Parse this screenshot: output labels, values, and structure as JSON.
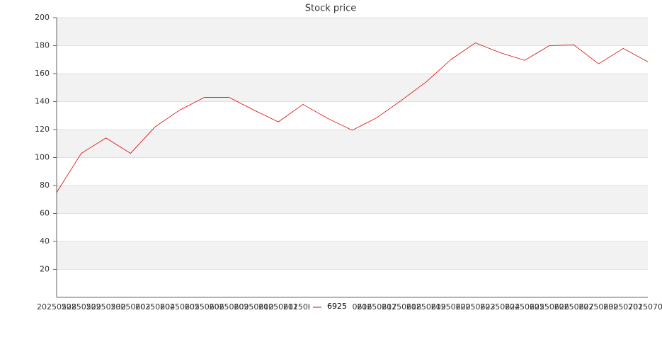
{
  "chart_data": {
    "type": "line",
    "title": "Stock price",
    "categories": [
      "20250528",
      "20250529",
      "20250530",
      "20250603",
      "20250604",
      "20250605",
      "20250606",
      "20250609",
      "20250610",
      "20250611",
      "20250612",
      "20250613",
      "20250616",
      "20250617",
      "20250618",
      "20250619",
      "20250620",
      "20250623",
      "20250624",
      "20250625",
      "20250626",
      "20250627",
      "20250630",
      "20250701",
      "20250702"
    ],
    "series": [
      {
        "name": "6925",
        "color": "#e00000",
        "values": [
          75,
          103,
          114,
          103,
          122,
          134,
          143,
          143,
          134,
          125.5,
          138,
          128,
          119.5,
          128.5,
          141,
          154,
          170,
          182,
          175,
          169.5,
          180,
          180.5,
          167,
          178,
          168.5
        ]
      }
    ],
    "ylim": [
      0,
      200
    ],
    "yticks": [
      20,
      40,
      60,
      80,
      100,
      120,
      140,
      160,
      180,
      200
    ],
    "grid": true
  }
}
